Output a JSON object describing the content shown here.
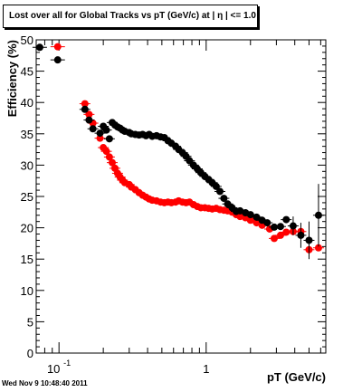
{
  "chart_data": {
    "type": "scatter",
    "title": "Lost over all for Global Tracks vs pT (GeV/c) at |  η | <= 1.0",
    "xlabel": "pT (GeV/c)",
    "ylabel": "Efficiency (%)",
    "xscale": "log",
    "xlim": [
      0.07,
      6.5
    ],
    "ylim": [
      0,
      50
    ],
    "x_tick_labels": [
      {
        "value": 0.1,
        "base": "10",
        "exp": "-1"
      },
      {
        "value": 1,
        "base": "1",
        "exp": ""
      }
    ],
    "y_ticks": [
      0,
      5,
      10,
      15,
      20,
      25,
      30,
      35,
      40,
      45,
      50
    ],
    "grid": false,
    "legend": "top-left",
    "series": [
      {
        "color": "#ff0000",
        "points": [
          [
            0.15,
            39.8
          ],
          [
            0.16,
            38.1
          ],
          [
            0.17,
            36.7
          ],
          [
            0.19,
            34.3
          ],
          [
            0.2,
            32.8
          ],
          [
            0.21,
            32.2
          ],
          [
            0.22,
            31.3
          ],
          [
            0.23,
            30.4
          ],
          [
            0.24,
            29.5
          ],
          [
            0.25,
            28.7
          ],
          [
            0.26,
            28.1
          ],
          [
            0.27,
            27.6
          ],
          [
            0.28,
            27.2
          ],
          [
            0.3,
            26.9
          ],
          [
            0.31,
            26.5
          ],
          [
            0.33,
            26.1
          ],
          [
            0.35,
            25.6
          ],
          [
            0.37,
            25.2
          ],
          [
            0.39,
            24.9
          ],
          [
            0.41,
            24.6
          ],
          [
            0.43,
            24.4
          ],
          [
            0.46,
            24.3
          ],
          [
            0.49,
            24.1
          ],
          [
            0.52,
            24.0
          ],
          [
            0.55,
            24.1
          ],
          [
            0.58,
            24.0
          ],
          [
            0.62,
            24.1
          ],
          [
            0.65,
            24.3
          ],
          [
            0.69,
            24.1
          ],
          [
            0.73,
            24.0
          ],
          [
            0.77,
            24.1
          ],
          [
            0.82,
            23.7
          ],
          [
            0.87,
            23.4
          ],
          [
            0.92,
            23.2
          ],
          [
            0.98,
            23.2
          ],
          [
            1.04,
            23.1
          ],
          [
            1.1,
            23.0
          ],
          [
            1.17,
            23.1
          ],
          [
            1.24,
            22.9
          ],
          [
            1.32,
            22.8
          ],
          [
            1.4,
            22.7
          ],
          [
            1.5,
            22.5
          ],
          [
            1.6,
            22.1
          ],
          [
            1.7,
            21.8
          ],
          [
            1.85,
            21.6
          ],
          [
            2.0,
            21.2
          ],
          [
            2.2,
            20.8
          ],
          [
            2.4,
            20.4
          ],
          [
            2.7,
            19.8
          ],
          [
            2.9,
            18.3
          ],
          [
            3.2,
            18.8
          ],
          [
            3.5,
            19.3
          ],
          [
            3.9,
            19.4
          ],
          [
            4.4,
            19.4
          ],
          [
            5.0,
            16.5
          ],
          [
            5.8,
            16.8
          ]
        ]
      },
      {
        "color": "#000000",
        "points": [
          [
            0.15,
            38.9
          ],
          [
            0.16,
            37.2
          ],
          [
            0.17,
            35.8
          ],
          [
            0.19,
            35.1
          ],
          [
            0.2,
            36.2
          ],
          [
            0.21,
            35.6
          ],
          [
            0.22,
            34.2
          ],
          [
            0.23,
            36.8
          ],
          [
            0.24,
            36.4
          ],
          [
            0.25,
            36.1
          ],
          [
            0.26,
            35.9
          ],
          [
            0.27,
            35.6
          ],
          [
            0.28,
            35.4
          ],
          [
            0.3,
            35.2
          ],
          [
            0.31,
            35.0
          ],
          [
            0.33,
            34.9
          ],
          [
            0.35,
            34.8
          ],
          [
            0.37,
            34.9
          ],
          [
            0.39,
            34.7
          ],
          [
            0.41,
            34.9
          ],
          [
            0.43,
            34.6
          ],
          [
            0.46,
            34.7
          ],
          [
            0.49,
            34.5
          ],
          [
            0.52,
            34.4
          ],
          [
            0.55,
            33.9
          ],
          [
            0.58,
            33.5
          ],
          [
            0.62,
            33.0
          ],
          [
            0.65,
            32.5
          ],
          [
            0.69,
            32.0
          ],
          [
            0.73,
            31.4
          ],
          [
            0.77,
            30.7
          ],
          [
            0.82,
            30.0
          ],
          [
            0.87,
            29.4
          ],
          [
            0.92,
            28.8
          ],
          [
            0.98,
            28.2
          ],
          [
            1.04,
            27.7
          ],
          [
            1.1,
            27.2
          ],
          [
            1.17,
            26.6
          ],
          [
            1.24,
            25.8
          ],
          [
            1.32,
            24.7
          ],
          [
            1.4,
            23.8
          ],
          [
            1.5,
            23.2
          ],
          [
            1.6,
            22.6
          ],
          [
            1.7,
            22.7
          ],
          [
            1.85,
            22.4
          ],
          [
            2.0,
            22.1
          ],
          [
            2.2,
            21.7
          ],
          [
            2.4,
            21.2
          ],
          [
            2.6,
            20.8
          ],
          [
            2.9,
            20.1
          ],
          [
            3.2,
            20.2
          ],
          [
            3.5,
            21.3
          ],
          [
            3.9,
            20.3
          ],
          [
            4.4,
            18.8
          ],
          [
            5.0,
            18.0
          ],
          [
            5.8,
            22.0
          ]
        ],
        "error_points": [
          [
            3.9,
            20.3,
            1.5
          ],
          [
            4.4,
            18.8,
            2.0
          ],
          [
            5.0,
            18.0,
            3.0
          ],
          [
            5.8,
            22.0,
            5.0
          ]
        ]
      }
    ],
    "extra_points": [
      {
        "color": "#000000",
        "x": 0.074,
        "y": 48.8
      },
      {
        "color": "#ff0000",
        "x": 0.098,
        "y": 48.9
      },
      {
        "color": "#000000",
        "x": 0.098,
        "y": 46.8
      }
    ]
  },
  "timestamp": "Wed Nov  9 10:48:40 2011"
}
